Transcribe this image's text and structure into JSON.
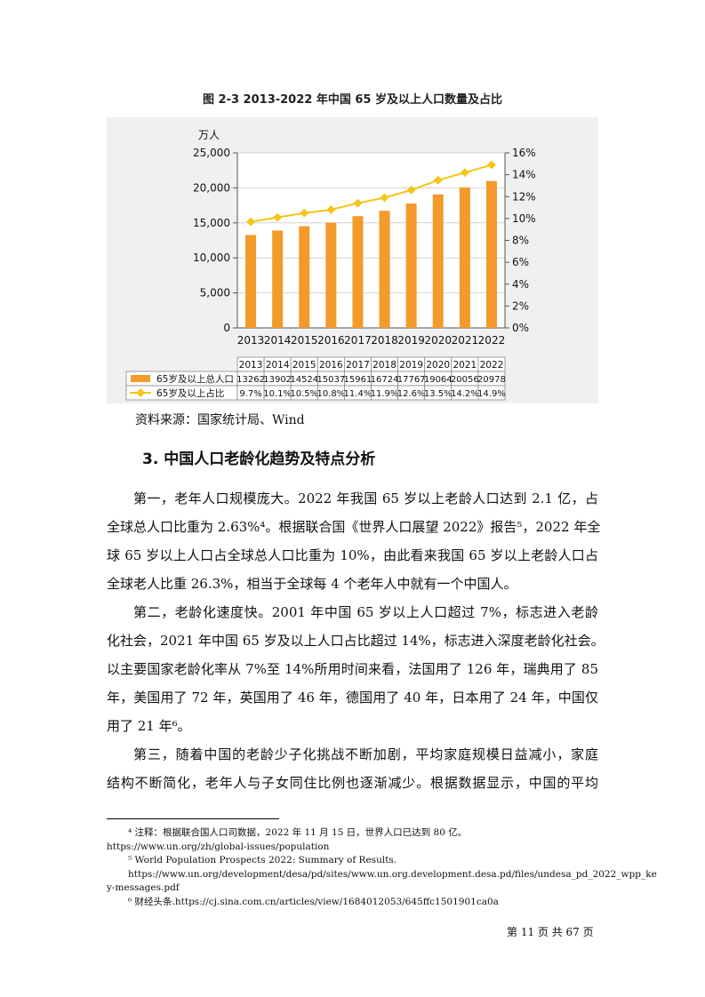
{
  "figure": {
    "title": "图 2-3 2013-2022 年中国 65 岁及以上人口数量及占比",
    "source": "资料来源：国家统计局、Wind"
  },
  "chart_data": {
    "type": "bar",
    "title": "图 2-3 2013-2022 年中国 65 岁及以上人口数量及占比",
    "categories": [
      "2013",
      "2014",
      "2015",
      "2016",
      "2017",
      "2018",
      "2019",
      "2020",
      "2021",
      "2022"
    ],
    "ylabel": "万人",
    "ylim": [
      0,
      25000
    ],
    "yticks": [
      "0",
      "5,000",
      "10,000",
      "15,000",
      "20,000",
      "25,000"
    ],
    "y2lim": [
      0,
      16
    ],
    "y2ticks": [
      "0%",
      "2%",
      "4%",
      "6%",
      "8%",
      "10%",
      "12%",
      "14%",
      "16%"
    ],
    "grid": true,
    "series": [
      {
        "name": "65岁及以上总人口",
        "chart": "bar",
        "axis": "left",
        "color": "#f39a2a",
        "values": [
          13262,
          13902,
          14524,
          15037,
          15961,
          16724,
          17767,
          19064,
          20056,
          20978
        ]
      },
      {
        "name": "65岁及以上占比",
        "chart": "line",
        "axis": "right",
        "color": "#f5c518",
        "values": [
          9.7,
          10.1,
          10.5,
          10.8,
          11.4,
          11.9,
          12.6,
          13.5,
          14.2,
          14.9
        ]
      }
    ],
    "table": {
      "rows": [
        {
          "label": "65岁及以上总人口",
          "cells": [
            "13262",
            "13902",
            "14524",
            "15037",
            "15961",
            "16724",
            "17767",
            "19064",
            "20056",
            "20978"
          ]
        },
        {
          "label": "65岁及以上占比",
          "cells": [
            "9.7%",
            "10.1%",
            "10.5%",
            "10.8%",
            "11.4%",
            "11.9%",
            "12.6%",
            "13.5%",
            "14.2%",
            "14.9%"
          ]
        }
      ]
    }
  },
  "section": {
    "heading": "3. 中国人口老龄化趋势及特点分析"
  },
  "paragraphs": [
    {
      "lines": [
        "第一，老年人口规模庞大。2022 年我国 65 岁以上老龄人口达到 2.1 亿，占",
        "全球总人口比重为 2.63%⁴。根据联合国《世界人口展望 2022》报告⁵，2022 年全",
        "球 65 岁以上人口占全球总人口比重为 10%，由此看来我国 65 岁以上老龄人口占",
        "全球老人比重 26.3%，相当于全球每 4 个老年人中就有一个中国人。"
      ]
    },
    {
      "lines": [
        "第二，老龄化速度快。2001 年中国 65 岁以上人口超过 7%，标志进入老龄",
        "化社会，2021 年中国 65 岁及以上人口占比超过 14%，标志进入深度老龄化社会。",
        "以主要国家老龄化率从 7%至 14%所用时间来看，法国用了 126 年，瑞典用了 85",
        "年，美国用了 72 年，英国用了 46 年，德国用了 40 年，日本用了 24 年，中国仅",
        "用了 21 年⁶。"
      ]
    },
    {
      "lines": [
        "第三，随着中国的老龄少子化挑战不断加剧，平均家庭规模日益减小，家庭",
        "结构不断简化，老年人与子女同住比例也逐渐减少。根据数据显示，中国的平均"
      ]
    }
  ],
  "footnotes": [
    "⁴ 注释：根据联合国人口司数据，2022 年 11 月 15 日，世界人口已达到 80 亿。",
    "https://www.un.org/zh/global-issues/population",
    "⁵ World Population Prospects 2022: Summary of Results.",
    "https://www.un.org/development/desa/pd/sites/www.un.org.development.desa.pd/files/undesa_pd_2022_wpp_ke",
    "y-messages.pdf",
    "⁶ 财经头条.https://cj.sina.com.cn/articles/view/1684012053/645ffc1501901ca0a"
  ],
  "page": {
    "number_text": "第 11 页 共 67 页"
  }
}
